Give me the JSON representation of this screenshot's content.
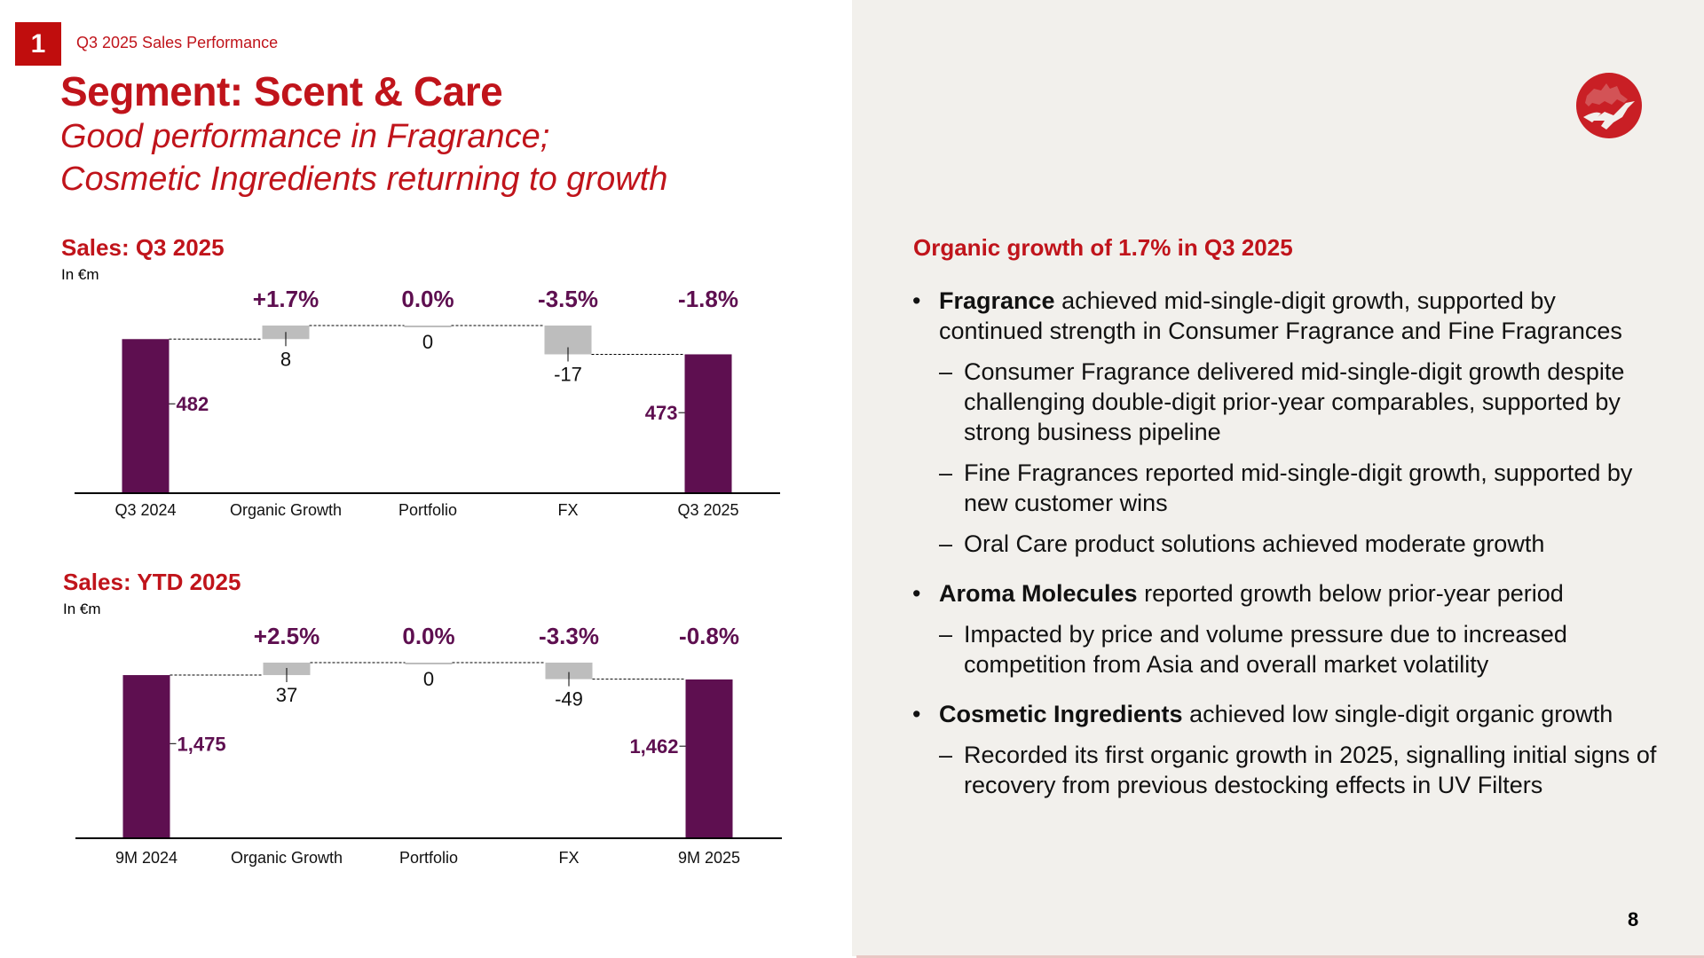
{
  "header": {
    "section_number": "1",
    "section_title": "Q3 2025 Sales Performance",
    "title": "Segment: Scent & Care",
    "subtitle_line1": "Good performance in Fragrance;",
    "subtitle_line2": "Cosmetic Ingredients returning to growth"
  },
  "colors": {
    "brand_red": "#c0141b",
    "total_bar": "#5e0f50",
    "delta_bar": "#bdbdbd",
    "panel_bg": "#f2f0ec"
  },
  "logo": {
    "icon": "dragon-hummingbird-logo-icon"
  },
  "chart_data": [
    {
      "type": "bar",
      "subtype": "waterfall",
      "title": "Sales: Q3 2025",
      "unit": "In €m",
      "categories": [
        "Q3 2024",
        "Organic Growth",
        "Portfolio",
        "FX",
        "Q3 2025"
      ],
      "values": [
        482,
        8,
        0,
        -17,
        473
      ],
      "value_labels": [
        "482",
        "8",
        "0",
        "-17",
        "473"
      ],
      "bar_kinds": [
        "total",
        "delta",
        "delta",
        "delta",
        "total"
      ],
      "pct_labels": [
        "",
        "+1.7%",
        "0.0%",
        "-3.5%",
        "-1.8%"
      ],
      "xlabel": "",
      "ylabel": "",
      "ylim": [
        391,
        500
      ]
    },
    {
      "type": "bar",
      "subtype": "waterfall",
      "title": "Sales: YTD 2025",
      "unit": "In €m",
      "categories": [
        "9M 2024",
        "Organic Growth",
        "Portfolio",
        "FX",
        "9M 2025"
      ],
      "values": [
        1475,
        37,
        0,
        -49,
        1462
      ],
      "value_labels": [
        "1,475",
        "37",
        "0",
        "-49",
        "1,462"
      ],
      "bar_kinds": [
        "total",
        "delta",
        "delta",
        "delta",
        "total"
      ],
      "pct_labels": [
        "",
        "+2.5%",
        "0.0%",
        "-3.3%",
        "-0.8%"
      ],
      "xlabel": "",
      "ylabel": "",
      "ylim": [
        991,
        1560
      ]
    }
  ],
  "right_panel": {
    "heading": "Organic growth of 1.7% in Q3 2025",
    "bullets": [
      {
        "bold": "Fragrance",
        "text": " achieved mid-single-digit growth, supported by continued strength in Consumer Fragrance and Fine Fragrances",
        "sub": [
          "Consumer Fragrance delivered mid-single-digit growth despite challenging double-digit prior-year comparables, supported by strong business pipeline",
          "Fine Fragrances reported mid-single-digit growth, supported by new customer wins",
          "Oral Care product solutions achieved moderate growth"
        ]
      },
      {
        "bold": "Aroma Molecules",
        "text": " reported growth below prior-year period",
        "sub": [
          "Impacted by price and volume pressure due to increased competition from Asia and overall market volatility"
        ]
      },
      {
        "bold": "Cosmetic Ingredients",
        "text": " achieved low single-digit organic growth",
        "sub": [
          "Recorded its first organic growth in 2025, signalling initial signs of recovery from previous destocking effects in UV Filters"
        ]
      }
    ],
    "bullet_glyph": "•",
    "dash_glyph": "–"
  },
  "footer": {
    "page_number": "8"
  }
}
